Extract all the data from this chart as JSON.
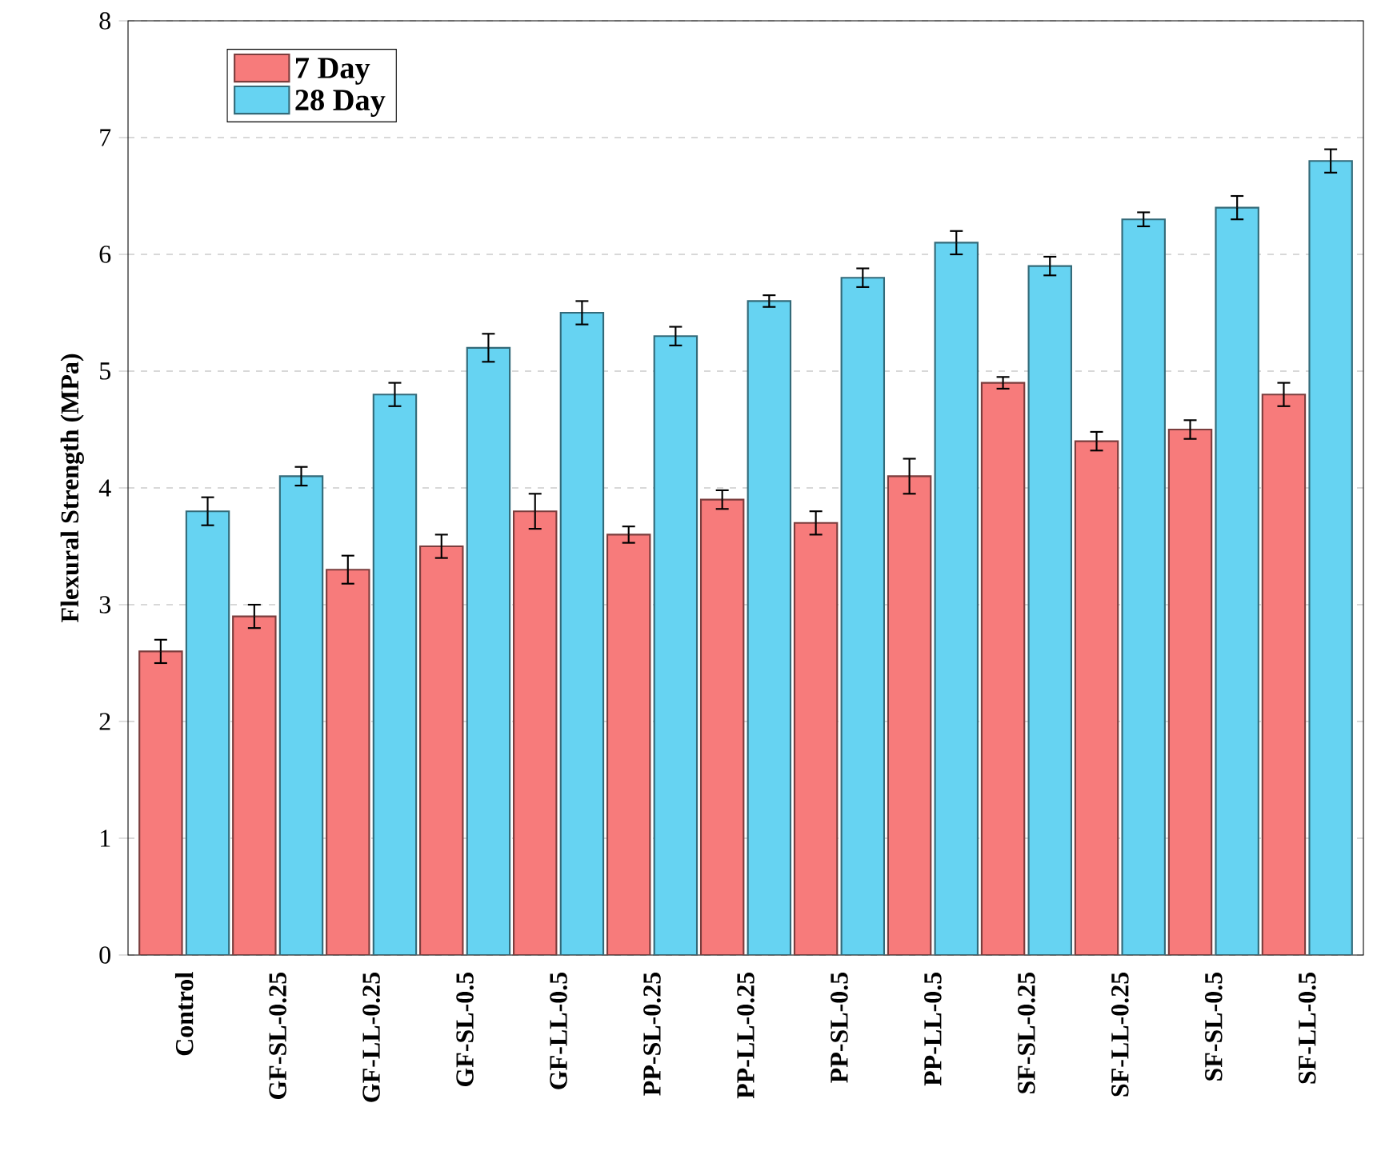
{
  "chart_data": {
    "type": "bar",
    "ylabel": "Flexural Strength (MPa)",
    "categories": [
      "Control",
      "GF-SL-0.25",
      "GF-LL-0.25",
      "GF-SL-0.5",
      "GF-LL-0.5",
      "PP-SL-0.25",
      "PP-LL-0.25",
      "PP-SL-0.5",
      "PP-LL-0.5",
      "SF-SL-0.25",
      "SF-LL-0.25",
      "SF-SL-0.5",
      "SF-LL-0.5"
    ],
    "series": [
      {
        "name": "7 Day",
        "color": "#f77b7b",
        "values": [
          2.6,
          2.9,
          3.3,
          3.5,
          3.8,
          3.6,
          3.9,
          3.7,
          4.1,
          4.9,
          4.4,
          4.5,
          4.8
        ],
        "errors": [
          0.1,
          0.1,
          0.12,
          0.1,
          0.15,
          0.07,
          0.08,
          0.1,
          0.15,
          0.05,
          0.08,
          0.08,
          0.1
        ]
      },
      {
        "name": "28 Day",
        "color": "#66d3f2",
        "values": [
          3.8,
          4.1,
          4.8,
          5.2,
          5.5,
          5.3,
          5.6,
          5.8,
          6.1,
          5.9,
          6.3,
          6.4,
          6.8
        ],
        "errors": [
          0.12,
          0.08,
          0.1,
          0.12,
          0.1,
          0.08,
          0.05,
          0.08,
          0.1,
          0.08,
          0.06,
          0.1,
          0.1
        ]
      }
    ],
    "ylim": [
      0,
      8
    ],
    "yticks": [
      0,
      1,
      2,
      3,
      4,
      5,
      6,
      7,
      8
    ],
    "grid": "y",
    "legend": "top left"
  }
}
